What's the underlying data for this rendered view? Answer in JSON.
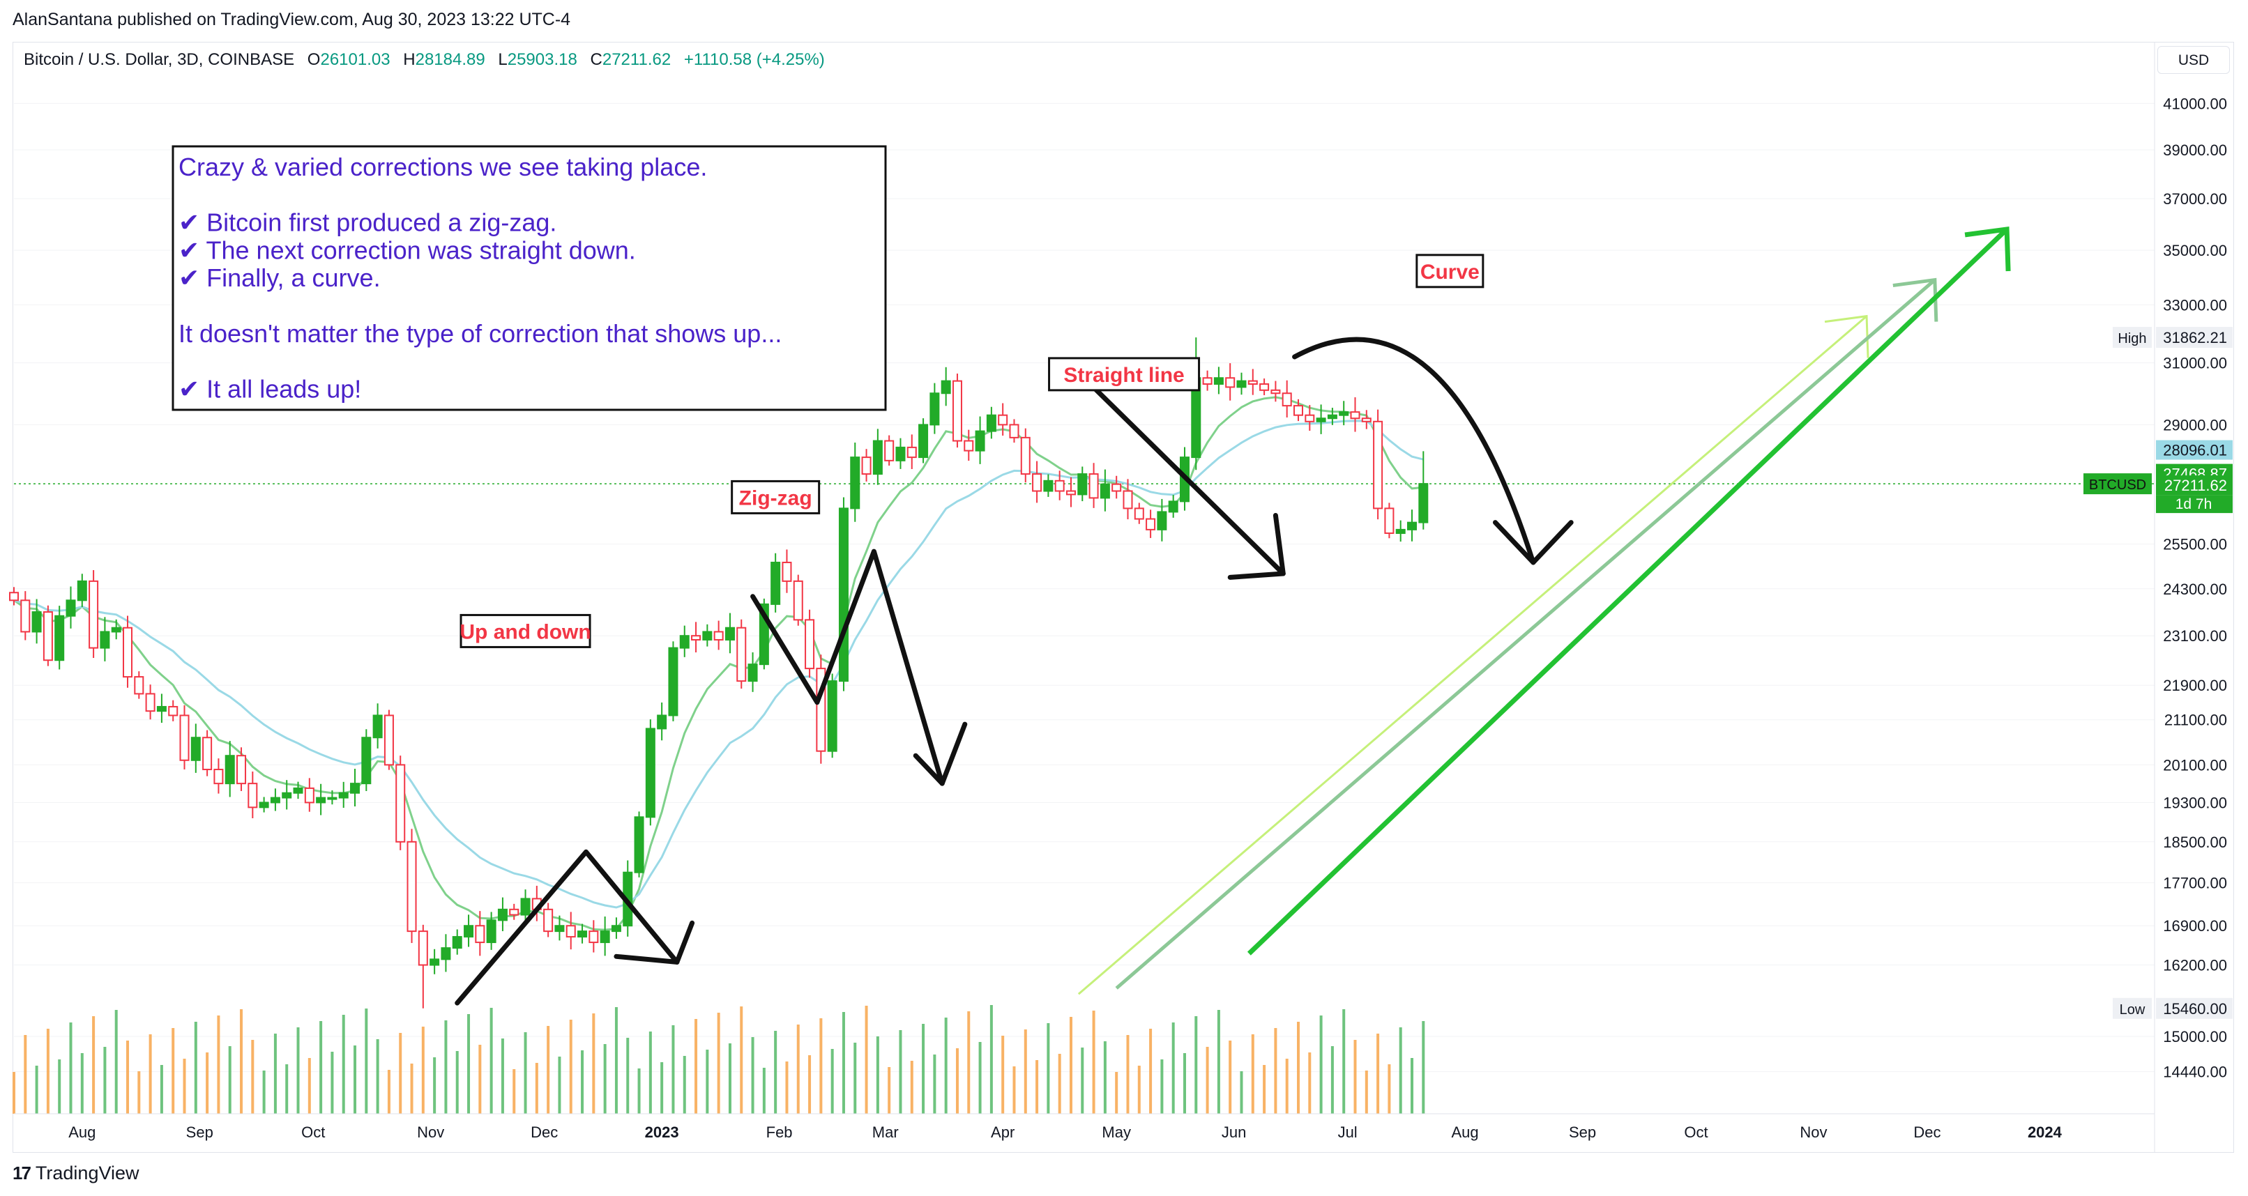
{
  "header": {
    "published": "AlanSantana published on TradingView.com, Aug 30, 2023 13:22 UTC-4",
    "symbol": "Bitcoin / U.S. Dollar, 3D, COINBASE",
    "ohlc": {
      "o_label": "O",
      "o": "26101.03",
      "h_label": "H",
      "h": "28184.89",
      "l_label": "L",
      "l": "25903.18",
      "c_label": "C",
      "c": "27211.62",
      "change": "+1110.58 (+4.25%)"
    },
    "currency": "USD"
  },
  "footer": {
    "brand": "TradingView",
    "logo_glyph": "17"
  },
  "colors": {
    "up": "#22ab28",
    "down": "#f23645",
    "ema_fast": "#7fd18b",
    "ema_slow": "#9ad9e6",
    "text_purple": "#4a22c9",
    "label_red": "#f23645",
    "price_line": "#22ab28",
    "vol_up": "#55b867",
    "vol_down": "#f7a44a"
  },
  "annotation_box": {
    "lines": [
      "Crazy & varied corrections we see taking place.",
      "",
      "✔ Bitcoin first produced a zig-zag.",
      "✔ The next correction was straight down.",
      "✔ Finally, a curve.",
      "",
      "It doesn't matter the type of correction that shows up...",
      "",
      "✔ It all leads up!"
    ]
  },
  "chart_data": {
    "type": "candlestick",
    "symbol": "BTCUSD",
    "timeframe": "3D",
    "y_scale": "log",
    "ylim": [
      13800,
      42200
    ],
    "price_ticks": [
      41000,
      39000,
      37000,
      35000,
      33000,
      31000,
      29000,
      25500,
      24300,
      23100,
      21900,
      21100,
      20100,
      19300,
      18500,
      17700,
      16900,
      16200,
      15000,
      14440
    ],
    "price_tick_labels": [
      "41000.00",
      "39000.00",
      "37000.00",
      "35000.00",
      "33000.00",
      "31000.00",
      "29000.00",
      "25500.00",
      "24300.00",
      "23100.00",
      "21900.00",
      "21100.00",
      "20100.00",
      "19300.00",
      "18500.00",
      "17700.00",
      "16900.00",
      "16200.00",
      "15000.00",
      "14440.00"
    ],
    "time_ticks": [
      {
        "label": "Aug",
        "date": "2022-08-01",
        "bold": false
      },
      {
        "label": "Sep",
        "date": "2022-09-01",
        "bold": false
      },
      {
        "label": "Oct",
        "date": "2022-10-01",
        "bold": false
      },
      {
        "label": "Nov",
        "date": "2022-11-01",
        "bold": false
      },
      {
        "label": "Dec",
        "date": "2022-12-01",
        "bold": false
      },
      {
        "label": "2023",
        "date": "2023-01-01",
        "bold": true
      },
      {
        "label": "Feb",
        "date": "2023-02-01",
        "bold": false
      },
      {
        "label": "Mar",
        "date": "2023-03-01",
        "bold": false
      },
      {
        "label": "Apr",
        "date": "2023-04-01",
        "bold": false
      },
      {
        "label": "May",
        "date": "2023-05-01",
        "bold": false
      },
      {
        "label": "Jun",
        "date": "2023-06-01",
        "bold": false
      },
      {
        "label": "Jul",
        "date": "2023-07-01",
        "bold": false
      },
      {
        "label": "Aug",
        "date": "2023-08-01",
        "bold": false
      },
      {
        "label": "Sep",
        "date": "2023-09-01",
        "bold": false
      },
      {
        "label": "Oct",
        "date": "2023-10-01",
        "bold": false
      },
      {
        "label": "Nov",
        "date": "2023-11-01",
        "bold": false
      },
      {
        "label": "Dec",
        "date": "2023-12-01",
        "bold": false
      },
      {
        "label": "2024",
        "date": "2024-01-01",
        "bold": true
      }
    ],
    "x_range": [
      "2022-07-14",
      "2024-01-30"
    ],
    "closes": [
      24000,
      23200,
      23700,
      22500,
      23600,
      24000,
      24500,
      22800,
      23200,
      23300,
      22100,
      21700,
      21300,
      21400,
      21200,
      20200,
      20700,
      20000,
      19700,
      20300,
      19700,
      19200,
      19300,
      19400,
      19500,
      19600,
      19300,
      19400,
      19400,
      19500,
      19700,
      20700,
      21200,
      20100,
      18500,
      16800,
      16200,
      16300,
      16500,
      16700,
      16900,
      16600,
      17000,
      17200,
      17100,
      17400,
      17200,
      16800,
      16900,
      16700,
      16800,
      16600,
      16800,
      16900,
      17900,
      19000,
      20900,
      21200,
      22800,
      23100,
      23000,
      23200,
      23000,
      23300,
      22000,
      22400,
      23900,
      25000,
      24500,
      23500,
      22300,
      20400,
      22000,
      26500,
      28000,
      27500,
      28500,
      27900,
      28300,
      28000,
      29000,
      30000,
      30400,
      28500,
      28200,
      28800,
      29300,
      29000,
      28600,
      27500,
      27000,
      27300,
      27000,
      26900,
      27500,
      26800,
      27200,
      27000,
      26500,
      26200,
      25900,
      26400,
      26700,
      28000,
      30500,
      30300,
      30500,
      30200,
      30400,
      30300,
      30100,
      30000,
      29600,
      29300,
      29100,
      29200,
      29300,
      29400,
      29200,
      29100,
      26500,
      25800,
      25900,
      26100,
      27211.62
    ],
    "ohlc_first_open": 24200,
    "ohlc_last": {
      "open": 26101.03,
      "high": 28184.89,
      "low": 25903.18,
      "close": 27211.62
    },
    "high": 31862.21,
    "low": 15460.0,
    "last_price": 27211.62,
    "price_labels": [
      {
        "name": "ema-fast-value",
        "value": 28096.01,
        "text": "28096.01"
      },
      {
        "name": "ema-slow-value",
        "value": 27468.87,
        "text": "27468.87"
      },
      {
        "name": "last-price",
        "value": 27211.62,
        "text": "27211.62"
      }
    ],
    "high_label": "High",
    "high_text": "31862.21",
    "low_label": "Low",
    "low_text": "15460.00",
    "symbol_tag": "BTCUSD",
    "countdown": "1d 7h",
    "pattern_labels": [
      {
        "text": "Up and down",
        "date": "2022-11-26",
        "price": 23200
      },
      {
        "text": "Zig-zag",
        "date": "2023-01-31",
        "price": 26800
      },
      {
        "text": "Straight line",
        "date": "2023-05-03",
        "price": 30600
      },
      {
        "text": "Curve",
        "date": "2023-07-28",
        "price": 34200
      }
    ],
    "trend_arrows_count": 3
  }
}
